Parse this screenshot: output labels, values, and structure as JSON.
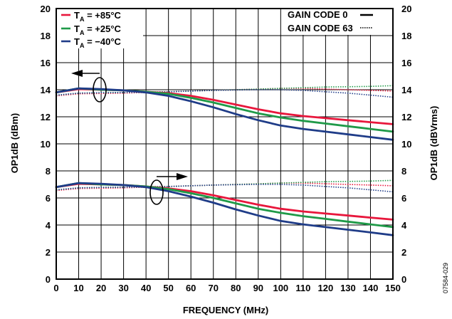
{
  "chart_data": {
    "type": "line",
    "xlabel": "FREQUENCY (MHz)",
    "ylabel_left": "OP1dB (dBm)",
    "ylabel_right": "OP1dB (dBVrms)",
    "xlim": [
      0,
      150
    ],
    "ylim": [
      0,
      20
    ],
    "x_ticks": [
      "0",
      "10",
      "20",
      "30",
      "40",
      "50",
      "60",
      "70",
      "80",
      "90",
      "100",
      "110",
      "120",
      "130",
      "140",
      "150"
    ],
    "y_ticks": [
      "0",
      "2",
      "4",
      "6",
      "8",
      "10",
      "12",
      "14",
      "16",
      "18",
      "20"
    ],
    "grid": true,
    "colors": {
      "hot": "#e8173c",
      "room": "#1f9a48",
      "cold": "#1f3c88",
      "axis": "#000000"
    },
    "legend_temp": {
      "hot": {
        "prefix": "T",
        "sub": "A",
        "value": " = +85°C"
      },
      "room": {
        "prefix": "T",
        "sub": "A",
        "value": " = +25°C"
      },
      "cold": {
        "prefix": "T",
        "sub": "A",
        "value": " = −40°C"
      }
    },
    "legend_style": {
      "solid": "GAIN CODE 0",
      "dotted": "GAIN CODE 63"
    },
    "figure_id": "07584-029",
    "series": [
      {
        "temp": "hot",
        "axis": "left",
        "style": "solid",
        "x": [
          0,
          10,
          20,
          30,
          40,
          50,
          60,
          70,
          80,
          90,
          100,
          110,
          120,
          130,
          140,
          150
        ],
        "y": [
          13.8,
          14.05,
          14.0,
          13.95,
          13.85,
          13.75,
          13.55,
          13.25,
          12.9,
          12.55,
          12.25,
          12.05,
          11.9,
          11.75,
          11.6,
          11.45
        ]
      },
      {
        "temp": "room",
        "axis": "left",
        "style": "solid",
        "x": [
          0,
          10,
          20,
          30,
          40,
          50,
          60,
          70,
          80,
          90,
          100,
          110,
          120,
          130,
          140,
          150
        ],
        "y": [
          13.8,
          14.1,
          14.0,
          13.95,
          13.85,
          13.7,
          13.4,
          13.05,
          12.65,
          12.25,
          11.95,
          11.7,
          11.5,
          11.3,
          11.1,
          10.9
        ]
      },
      {
        "temp": "cold",
        "axis": "left",
        "style": "solid",
        "x": [
          0,
          10,
          20,
          30,
          40,
          50,
          60,
          70,
          80,
          90,
          100,
          110,
          120,
          130,
          140,
          150
        ],
        "y": [
          13.8,
          14.1,
          14.05,
          13.95,
          13.8,
          13.55,
          13.15,
          12.7,
          12.2,
          11.75,
          11.35,
          11.1,
          10.9,
          10.7,
          10.5,
          10.3
        ]
      },
      {
        "temp": "hot",
        "axis": "left",
        "style": "dotted",
        "x": [
          0,
          10,
          20,
          30,
          40,
          50,
          60,
          70,
          80,
          90,
          100,
          110,
          120,
          130,
          140,
          150
        ],
        "y": [
          13.55,
          13.7,
          13.72,
          13.75,
          13.8,
          13.85,
          13.9,
          13.95,
          14.0,
          14.05,
          14.1,
          14.1,
          14.05,
          14.0,
          13.95,
          13.9
        ]
      },
      {
        "temp": "room",
        "axis": "left",
        "style": "dotted",
        "x": [
          0,
          10,
          20,
          30,
          40,
          50,
          60,
          70,
          80,
          90,
          100,
          110,
          120,
          130,
          140,
          150
        ],
        "y": [
          13.6,
          13.75,
          13.78,
          13.8,
          13.82,
          13.85,
          13.9,
          13.95,
          14.0,
          14.05,
          14.1,
          14.15,
          14.2,
          14.22,
          14.25,
          14.3
        ]
      },
      {
        "temp": "cold",
        "axis": "left",
        "style": "dotted",
        "x": [
          0,
          10,
          20,
          30,
          40,
          50,
          60,
          70,
          80,
          90,
          100,
          110,
          120,
          130,
          140,
          150
        ],
        "y": [
          13.6,
          13.75,
          13.78,
          13.8,
          13.82,
          13.85,
          13.9,
          13.95,
          13.98,
          14.0,
          14.0,
          13.95,
          13.85,
          13.75,
          13.6,
          13.45
        ]
      },
      {
        "temp": "hot",
        "axis": "right",
        "style": "solid",
        "x": [
          0,
          10,
          20,
          30,
          40,
          50,
          60,
          70,
          80,
          90,
          100,
          110,
          120,
          130,
          140,
          150
        ],
        "y": [
          6.8,
          7.05,
          7.0,
          6.95,
          6.85,
          6.7,
          6.5,
          6.2,
          5.85,
          5.5,
          5.2,
          5.0,
          4.85,
          4.7,
          4.55,
          4.4
        ]
      },
      {
        "temp": "room",
        "axis": "right",
        "style": "solid",
        "x": [
          0,
          10,
          20,
          30,
          40,
          50,
          60,
          70,
          80,
          90,
          100,
          110,
          120,
          130,
          140,
          150
        ],
        "y": [
          6.8,
          7.1,
          7.0,
          6.95,
          6.85,
          6.65,
          6.35,
          6.0,
          5.6,
          5.2,
          4.9,
          4.65,
          4.45,
          4.25,
          4.05,
          3.85
        ]
      },
      {
        "temp": "cold",
        "axis": "right",
        "style": "solid",
        "x": [
          0,
          10,
          20,
          30,
          40,
          50,
          60,
          70,
          80,
          90,
          100,
          110,
          120,
          130,
          140,
          150
        ],
        "y": [
          6.8,
          7.1,
          7.05,
          6.95,
          6.8,
          6.5,
          6.1,
          5.65,
          5.15,
          4.7,
          4.3,
          4.05,
          3.85,
          3.65,
          3.45,
          3.25
        ]
      },
      {
        "temp": "hot",
        "axis": "right",
        "style": "dotted",
        "x": [
          0,
          10,
          20,
          30,
          40,
          50,
          60,
          70,
          80,
          90,
          100,
          110,
          120,
          130,
          140,
          150
        ],
        "y": [
          6.55,
          6.7,
          6.72,
          6.75,
          6.8,
          6.85,
          6.9,
          6.95,
          7.0,
          7.05,
          7.1,
          7.1,
          7.05,
          7.0,
          6.95,
          6.9
        ]
      },
      {
        "temp": "room",
        "axis": "right",
        "style": "dotted",
        "x": [
          0,
          10,
          20,
          30,
          40,
          50,
          60,
          70,
          80,
          90,
          100,
          110,
          120,
          130,
          140,
          150
        ],
        "y": [
          6.6,
          6.75,
          6.78,
          6.8,
          6.82,
          6.85,
          6.9,
          6.95,
          7.0,
          7.05,
          7.1,
          7.15,
          7.2,
          7.22,
          7.25,
          7.3
        ]
      },
      {
        "temp": "cold",
        "axis": "right",
        "style": "dotted",
        "x": [
          0,
          10,
          20,
          30,
          40,
          50,
          60,
          70,
          80,
          90,
          100,
          110,
          120,
          130,
          140,
          150
        ],
        "y": [
          6.6,
          6.75,
          6.78,
          6.8,
          6.82,
          6.85,
          6.9,
          6.95,
          6.98,
          7.0,
          7.0,
          6.95,
          6.85,
          6.75,
          6.6,
          6.45
        ]
      }
    ]
  }
}
